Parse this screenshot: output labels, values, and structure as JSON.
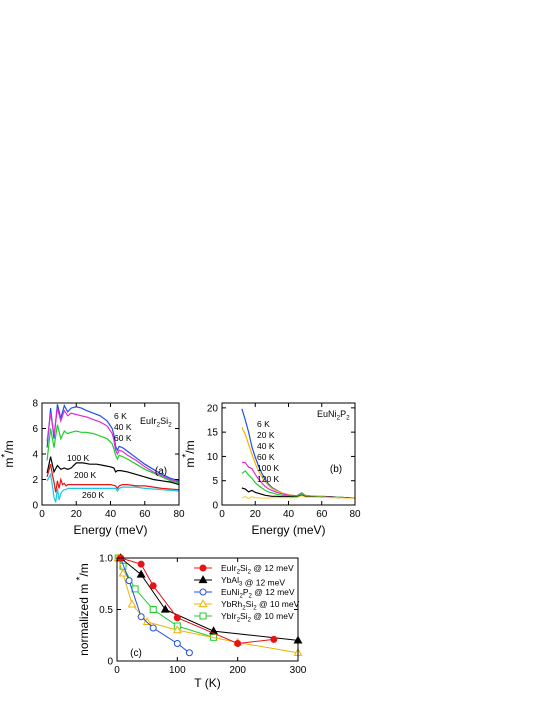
{
  "chart_data": [
    {
      "panel_label": "(a)",
      "type": "line",
      "material": [
        "EuIr",
        "2",
        "Si",
        "2"
      ],
      "xlabel": "Energy (meV)",
      "ylabel": [
        "m",
        "*",
        "/m"
      ],
      "xlim": [
        0,
        80
      ],
      "ylim": [
        0,
        8
      ],
      "xticks": [
        "0",
        "20",
        "40",
        "60",
        "80"
      ],
      "yticks": [
        "0",
        "2",
        "4",
        "6",
        "8"
      ],
      "legend_labels": [
        "6 K",
        "40 K",
        "60 K",
        "100 K",
        "200 K",
        "260 K"
      ],
      "series": [
        {
          "name": "6 K",
          "color": "#1f4fe6",
          "x": [
            3,
            5,
            7,
            9,
            11,
            13,
            15,
            17,
            20,
            23,
            26,
            30,
            34,
            38,
            41,
            42,
            43,
            44,
            45,
            47,
            50,
            55,
            60,
            65,
            70,
            75,
            80
          ],
          "y": [
            4.5,
            7.6,
            5.2,
            7.9,
            6.8,
            7.8,
            7.3,
            7.6,
            7.7,
            7.6,
            7.4,
            7.2,
            7.0,
            6.6,
            6.0,
            5.5,
            4.6,
            4.3,
            4.6,
            4.5,
            4.2,
            3.7,
            3.2,
            2.8,
            2.4,
            2.1,
            1.9
          ]
        },
        {
          "name": "40 K",
          "color": "#e02ad6",
          "x": [
            3,
            5,
            7,
            9,
            11,
            13,
            15,
            17,
            20,
            23,
            26,
            30,
            34,
            38,
            41,
            42,
            43,
            44,
            45,
            47,
            50,
            55,
            60,
            65,
            70,
            75,
            80
          ],
          "y": [
            5.0,
            7.2,
            5.5,
            7.6,
            6.6,
            7.4,
            7.0,
            7.2,
            7.1,
            7.0,
            6.9,
            6.7,
            6.5,
            6.2,
            5.6,
            5.1,
            4.3,
            4.0,
            4.3,
            4.2,
            3.9,
            3.5,
            3.0,
            2.6,
            2.3,
            2.0,
            1.8
          ]
        },
        {
          "name": "60 K",
          "color": "#1fcc2a",
          "x": [
            3,
            5,
            7,
            9,
            11,
            13,
            15,
            17,
            20,
            23,
            26,
            30,
            34,
            38,
            41,
            42,
            43,
            44,
            45,
            47,
            50,
            55,
            60,
            65,
            70,
            75,
            80
          ],
          "y": [
            3.5,
            6.0,
            4.5,
            6.3,
            5.2,
            5.8,
            5.6,
            5.7,
            5.8,
            5.7,
            5.7,
            5.6,
            5.4,
            5.2,
            4.8,
            4.4,
            3.9,
            3.6,
            3.9,
            3.8,
            3.6,
            3.2,
            2.8,
            2.5,
            2.2,
            1.9,
            1.7
          ]
        },
        {
          "name": "100 K",
          "color": "#000000",
          "x": [
            3,
            5,
            7,
            9,
            11,
            13,
            15,
            17,
            20,
            24,
            28,
            32,
            36,
            40,
            42,
            43,
            44,
            46,
            50,
            55,
            60,
            65,
            70,
            75,
            80
          ],
          "y": [
            2.5,
            3.8,
            2.6,
            3.1,
            2.8,
            2.9,
            2.8,
            2.9,
            3.3,
            3.3,
            3.2,
            3.2,
            3.1,
            3.0,
            2.9,
            2.6,
            2.7,
            2.7,
            2.6,
            2.4,
            2.2,
            2.0,
            1.9,
            1.8,
            1.6
          ]
        },
        {
          "name": "200 K",
          "color": "#e81414",
          "x": [
            3,
            5,
            6,
            7,
            8,
            9,
            10,
            11,
            12,
            13,
            14,
            15,
            17,
            20,
            25,
            30,
            35,
            40,
            43,
            44,
            45,
            47,
            50,
            55,
            60,
            70,
            80
          ],
          "y": [
            2.2,
            3.2,
            2.4,
            1.8,
            1.0,
            1.9,
            1.3,
            2.0,
            1.6,
            1.7,
            1.5,
            1.6,
            1.6,
            1.6,
            1.6,
            1.6,
            1.6,
            1.6,
            1.5,
            1.3,
            1.5,
            1.6,
            1.6,
            1.5,
            1.5,
            1.3,
            1.2
          ]
        },
        {
          "name": "260 K",
          "color": "#17c8e6",
          "x": [
            3,
            5,
            6,
            7,
            8,
            9,
            10,
            11,
            12,
            13,
            14,
            15,
            17,
            20,
            25,
            30,
            35,
            40,
            43,
            44,
            45,
            47,
            50,
            55,
            60,
            70,
            80
          ],
          "y": [
            1.9,
            2.4,
            1.6,
            0.6,
            0.2,
            1.3,
            0.4,
            0.9,
            1.1,
            1.2,
            1.2,
            1.3,
            1.3,
            1.3,
            1.3,
            1.3,
            1.3,
            1.3,
            1.3,
            1.1,
            1.3,
            1.4,
            1.4,
            1.4,
            1.3,
            1.2,
            1.1
          ]
        }
      ]
    },
    {
      "panel_label": "(b)",
      "type": "line",
      "material": [
        "EuNi",
        "2",
        "P",
        "2"
      ],
      "xlabel": "Energy (meV)",
      "ylabel": [
        "m",
        "*",
        "/m"
      ],
      "xlim": [
        0,
        80
      ],
      "ylim": [
        0,
        21
      ],
      "xticks": [
        "0",
        "20",
        "40",
        "60",
        "80"
      ],
      "yticks": [
        "0",
        "5",
        "10",
        "15",
        "20"
      ],
      "legend_labels": [
        "6 K",
        "20 K",
        "40 K",
        "60 K",
        "100 K",
        "120 K"
      ],
      "series": [
        {
          "name": "6 K",
          "color": "#1f4fe6",
          "x": [
            12,
            14,
            16,
            18,
            20,
            22,
            24,
            26,
            28,
            30,
            33,
            36,
            40,
            45,
            48,
            50,
            55,
            60,
            65,
            70,
            75,
            80
          ],
          "y": [
            19.8,
            17.5,
            15.0,
            12.0,
            9.8,
            8.0,
            6.5,
            5.3,
            4.3,
            3.6,
            3.0,
            2.5,
            2.1,
            1.9,
            2.5,
            2.0,
            1.8,
            1.8,
            1.7,
            1.6,
            1.5,
            1.4
          ]
        },
        {
          "name": "20 K",
          "color": "#f0b400",
          "x": [
            12,
            14,
            16,
            18,
            20,
            22,
            24,
            26,
            28,
            30,
            33,
            36,
            40,
            45,
            48,
            50,
            55,
            60,
            65,
            70,
            75,
            80
          ],
          "y": [
            16.0,
            14.5,
            12.5,
            10.5,
            8.5,
            7.0,
            5.8,
            4.8,
            4.0,
            3.4,
            2.9,
            2.5,
            2.1,
            1.9,
            2.4,
            2.0,
            1.8,
            1.8,
            1.7,
            1.6,
            1.5,
            1.4
          ]
        },
        {
          "name": "60 K",
          "color": "#e02ad6",
          "x": [
            12,
            14,
            16,
            18,
            20,
            22,
            24,
            26,
            28,
            30,
            33,
            36,
            40,
            45,
            48,
            50,
            55,
            60,
            65,
            70,
            75,
            80
          ],
          "y": [
            8.8,
            8.7,
            7.8,
            7.5,
            6.3,
            5.3,
            4.5,
            3.8,
            3.3,
            3.0,
            2.6,
            2.3,
            2.0,
            1.9,
            2.3,
            1.9,
            1.8,
            1.7,
            1.7,
            1.6,
            1.5,
            1.4
          ]
        },
        {
          "name": "100 K",
          "color": "#1fcc2a",
          "x": [
            12,
            14,
            16,
            18,
            20,
            22,
            24,
            26,
            28,
            30,
            33,
            36,
            40,
            45,
            48,
            50,
            55,
            60,
            65,
            70,
            75,
            80
          ],
          "y": [
            6.5,
            7.0,
            6.2,
            5.5,
            4.6,
            4.0,
            3.5,
            3.0,
            2.7,
            2.5,
            2.2,
            2.0,
            1.9,
            1.8,
            2.2,
            1.9,
            1.8,
            1.7,
            1.6,
            1.6,
            1.5,
            1.4
          ]
        },
        {
          "name": "120 K",
          "color": "#000000",
          "x": [
            12,
            14,
            16,
            18,
            20,
            22,
            24,
            26,
            28,
            30,
            33,
            36,
            40,
            45,
            48,
            50,
            55,
            60,
            65,
            70,
            75,
            80
          ],
          "y": [
            3.5,
            3.3,
            2.7,
            3.0,
            2.6,
            2.4,
            2.2,
            2.0,
            1.9,
            1.8,
            1.8,
            1.7,
            1.7,
            1.6,
            2.0,
            1.7,
            1.7,
            1.6,
            1.6,
            1.5,
            1.5,
            1.4
          ]
        },
        {
          "name": "40 K",
          "color": "#ffd24d",
          "x": [
            12,
            14,
            16,
            18,
            20,
            22,
            24,
            26,
            28,
            30,
            33,
            36,
            40,
            45,
            48,
            50,
            55,
            60,
            65,
            70,
            75,
            80
          ],
          "y": [
            1.5,
            1.7,
            1.3,
            1.7,
            1.5,
            1.5,
            1.4,
            1.4,
            1.4,
            1.5,
            1.5,
            1.5,
            1.5,
            1.5,
            1.9,
            1.6,
            1.6,
            1.6,
            1.5,
            1.5,
            1.4,
            1.4
          ]
        }
      ]
    },
    {
      "panel_label": "(c)",
      "type": "line",
      "xlabel": "T (K)",
      "ylabel": "normalized m",
      "ylabel_sup": "*",
      "ylabel_suffix": "/m",
      "xlim": [
        0,
        300
      ],
      "ylim": [
        0,
        1.0
      ],
      "xticks": [
        "0",
        "100",
        "200",
        "300"
      ],
      "yticks": [
        "0",
        "0.5",
        "1.0"
      ],
      "series": [
        {
          "name_parts": [
            "EuIr",
            "2",
            "Si",
            "2",
            " @ 12 meV"
          ],
          "color": "#e81414",
          "marker": "circle-filled",
          "x": [
            6,
            40,
            60,
            100,
            200,
            260
          ],
          "y": [
            1.0,
            0.94,
            0.73,
            0.42,
            0.17,
            0.21
          ]
        },
        {
          "name_parts": [
            "YbAl",
            "3",
            "",
            "",
            " @ 12 meV"
          ],
          "color": "#000000",
          "marker": "triangle-filled",
          "x": [
            6,
            40,
            80,
            160,
            300
          ],
          "y": [
            1.0,
            0.84,
            0.5,
            0.29,
            0.2
          ]
        },
        {
          "name_parts": [
            "EuNi",
            "2",
            "P",
            "2",
            " @ 12 meV"
          ],
          "color": "#1f4fe6",
          "marker": "circle-open",
          "x": [
            6,
            20,
            40,
            60,
            100,
            120
          ],
          "y": [
            1.0,
            0.78,
            0.43,
            0.32,
            0.17,
            0.08
          ]
        },
        {
          "name_parts": [
            "YbRh",
            "2",
            "Si",
            "2",
            " @ 10 meV"
          ],
          "color": "#f0b400",
          "marker": "triangle-open",
          "x": [
            2,
            10,
            25,
            50,
            100,
            200,
            300
          ],
          "y": [
            1.0,
            0.85,
            0.55,
            0.38,
            0.3,
            0.18,
            0.08
          ]
        },
        {
          "name_parts": [
            "YbIr",
            "2",
            "Si",
            "2",
            " @ 10 meV"
          ],
          "color": "#1fcc2a",
          "marker": "square-open",
          "x": [
            2,
            10,
            30,
            60,
            100,
            160
          ],
          "y": [
            1.0,
            0.92,
            0.7,
            0.5,
            0.34,
            0.23
          ]
        }
      ]
    }
  ]
}
